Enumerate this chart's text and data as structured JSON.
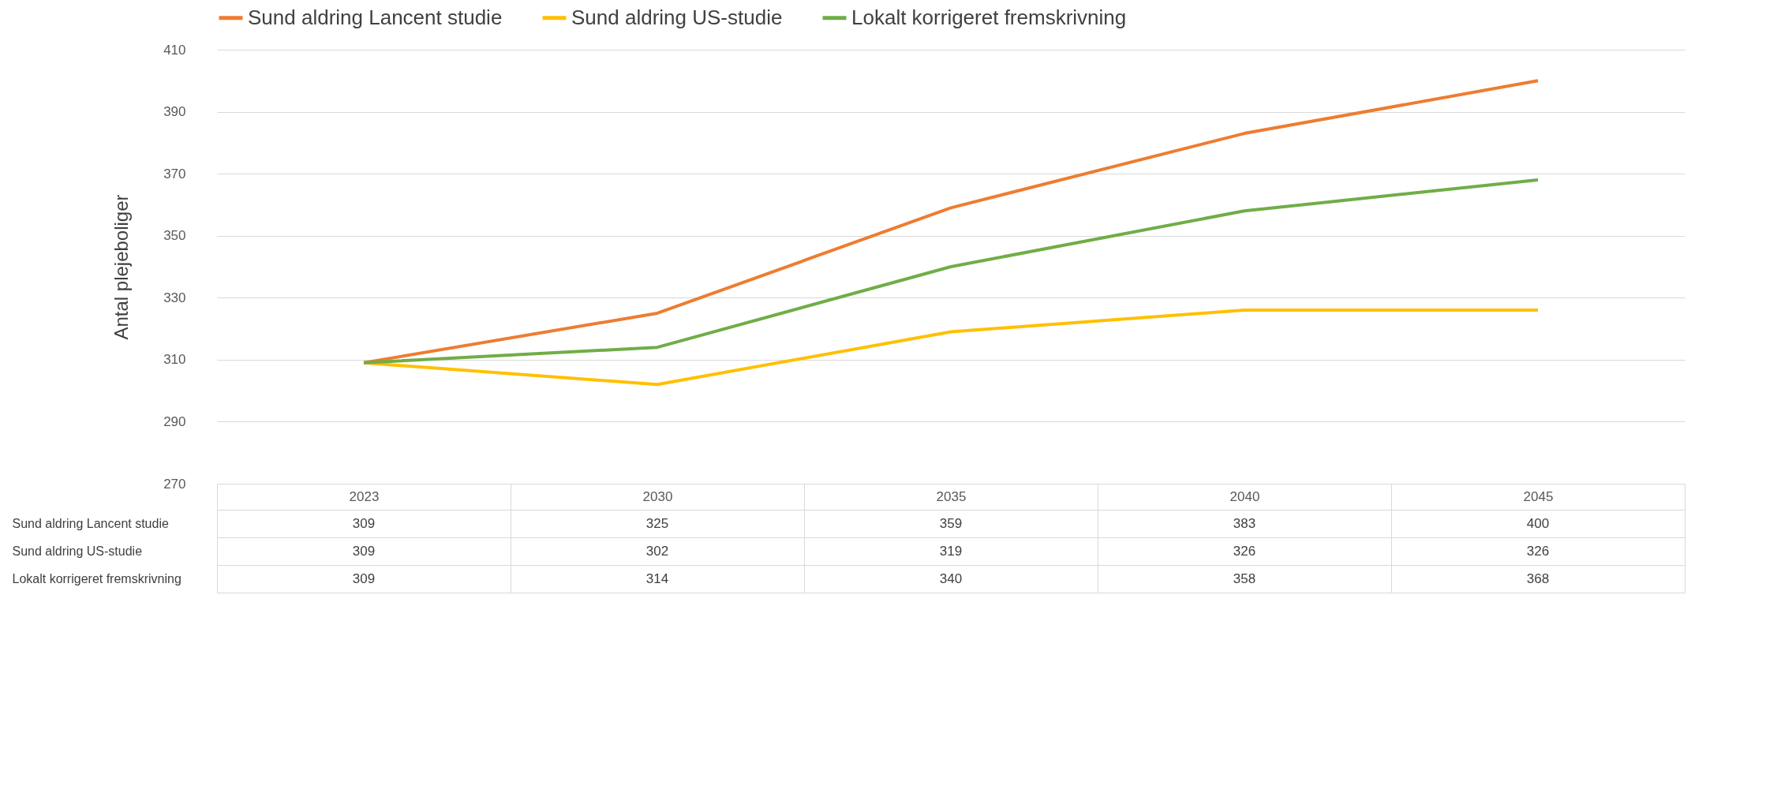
{
  "chart_data": {
    "type": "line",
    "ylabel": "Antal plejeboliger",
    "categories": [
      "2023",
      "2030",
      "2035",
      "2040",
      "2045"
    ],
    "series": [
      {
        "name": "Sund aldring Lancent studie",
        "color": "#ed7d31",
        "values": [
          309,
          325,
          359,
          383,
          400
        ]
      },
      {
        "name": "Sund aldring US-studie",
        "color": "#ffc000",
        "values": [
          309,
          302,
          319,
          326,
          326
        ]
      },
      {
        "name": "Lokalt korrigeret fremskrivning",
        "color": "#70ad47",
        "values": [
          309,
          314,
          340,
          358,
          368
        ]
      }
    ],
    "ylim": [
      270,
      410
    ],
    "yticks": [
      270,
      290,
      310,
      330,
      350,
      370,
      390,
      410
    ],
    "grid": "y",
    "legend": "top",
    "marker": "none",
    "line_style": "solid",
    "data_labels": true
  }
}
